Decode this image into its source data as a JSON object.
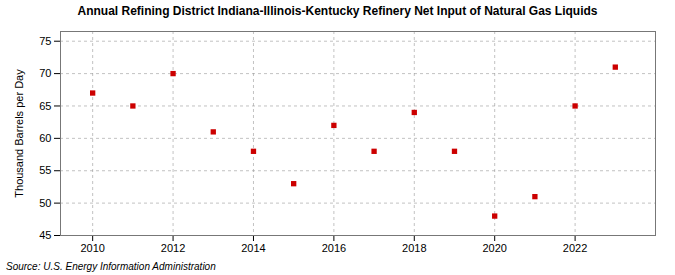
{
  "chart_data": {
    "type": "scatter",
    "title": "Annual Refining District Indiana-Illinois-Kentucky Refinery Net Input of Natural Gas Liquids",
    "ylabel": "Thousand Barrels per Day",
    "source": "Source: U.S. Energy Information Administration",
    "x": [
      2010,
      2011,
      2012,
      2013,
      2014,
      2015,
      2016,
      2017,
      2018,
      2019,
      2020,
      2021,
      2022,
      2023
    ],
    "values": [
      67,
      65,
      70,
      61,
      58,
      53,
      62,
      58,
      64,
      58,
      48,
      51,
      65,
      71
    ],
    "color": "#cc0000",
    "marker": "square",
    "xlim": [
      2009.2,
      2024.0
    ],
    "ylim": [
      45,
      76.5
    ],
    "xticks": [
      2010,
      2012,
      2014,
      2016,
      2018,
      2020,
      2022
    ],
    "yticks": [
      45,
      50,
      55,
      60,
      65,
      70,
      75
    ],
    "grid": true
  }
}
